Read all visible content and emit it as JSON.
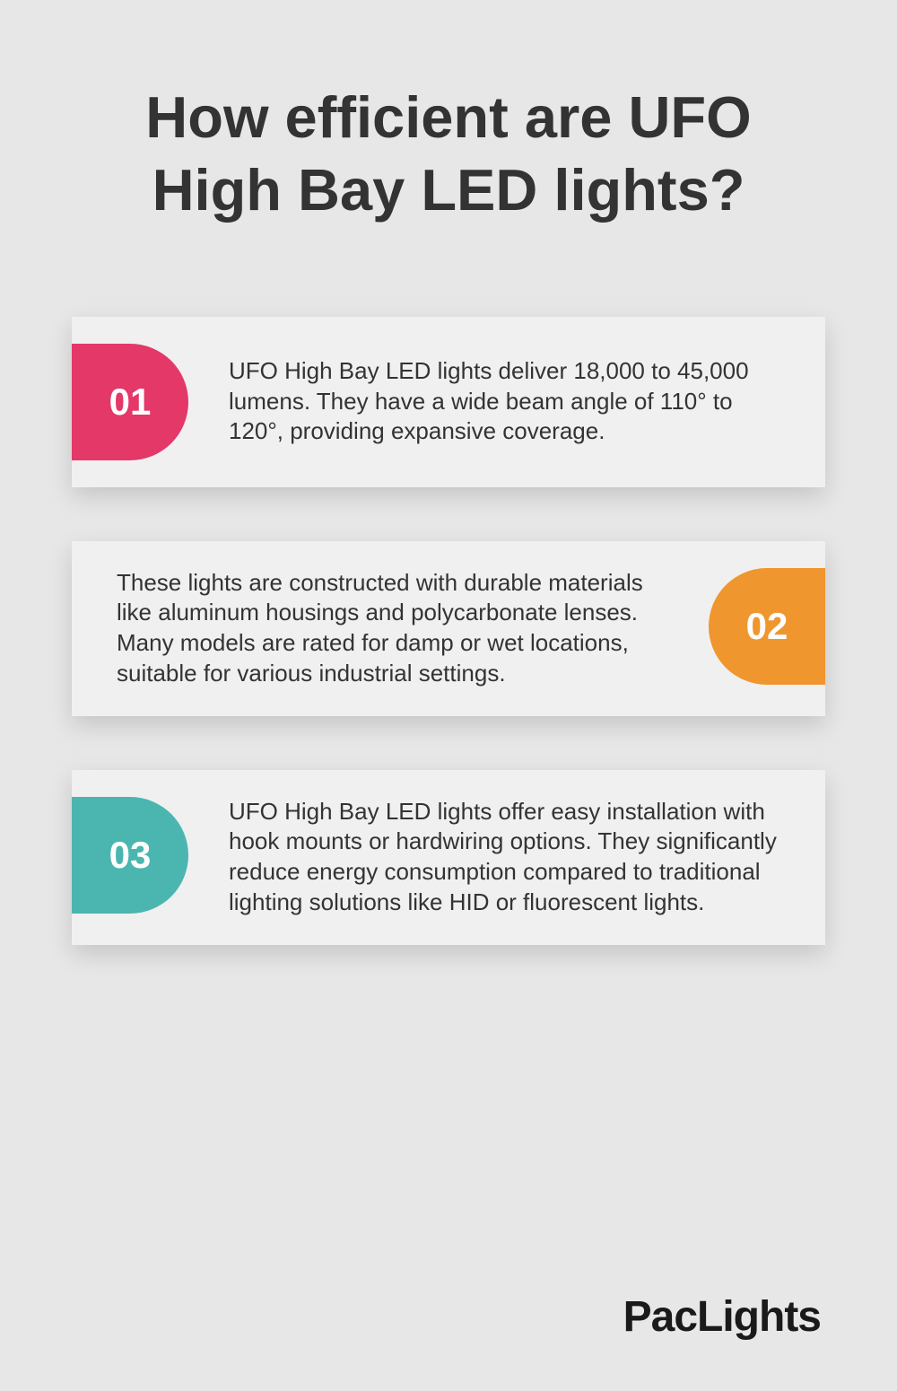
{
  "title": "How efficient are UFO High Bay LED lights?",
  "cards": [
    {
      "number": "01",
      "badge_color": "#e33868",
      "position": "left",
      "text": "UFO High Bay LED lights deliver 18,000 to 45,000 lumens. They have a wide beam angle of 110° to 120°, providing expansive coverage."
    },
    {
      "number": "02",
      "badge_color": "#f0962f",
      "position": "right",
      "text": "These lights are constructed with durable materials like aluminum housings and polycarbonate lenses. Many models are rated for damp or wet locations, suitable for various industrial settings."
    },
    {
      "number": "03",
      "badge_color": "#4bb6b0",
      "position": "left",
      "text": "UFO High Bay LED lights offer easy installation with hook mounts or hardwiring options. They significantly reduce energy consumption compared to traditional lighting solutions like HID or fluorescent lights."
    }
  ],
  "brand": "PacLights",
  "colors": {
    "background": "#e7e7e7",
    "card_background": "#f0f0f0",
    "text": "#333333",
    "brand_text": "#1a1a1a"
  }
}
